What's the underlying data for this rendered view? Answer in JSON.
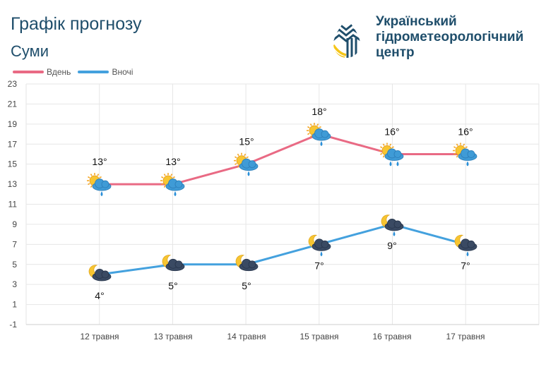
{
  "header": {
    "title": "Графік прогнозу",
    "city": "Суми"
  },
  "logo": {
    "line1": "Український",
    "line2": "гідрометеорологічний",
    "line3": "центр"
  },
  "legend": {
    "day_label": "Вдень",
    "night_label": "Вночі"
  },
  "colors": {
    "day": "#e96a84",
    "night": "#44a1de",
    "grid": "#e6e6e6",
    "text": "#1f4e6b"
  },
  "chart_data": {
    "type": "line",
    "title": "Графік прогнозу",
    "categories": [
      "12 травня",
      "13 травня",
      "14 травня",
      "15 травня",
      "16 травня",
      "17 травня"
    ],
    "y_ticks": [
      23,
      21,
      19,
      17,
      15,
      13,
      11,
      9,
      7,
      5,
      3,
      1,
      -1
    ],
    "ylim": [
      -1,
      23
    ],
    "series": [
      {
        "name": "Вдень",
        "values": [
          13,
          13,
          15,
          18,
          16,
          16
        ],
        "labels": [
          "13°",
          "13°",
          "15°",
          "18°",
          "16°",
          "16°"
        ],
        "icons": [
          "sun-cloud-rain-icon",
          "sun-cloud-rain-icon",
          "sun-cloud-rain-icon",
          "sun-cloud-rain-icon",
          "sun-cloud-heavy-rain-icon",
          "sun-cloud-rain-icon"
        ]
      },
      {
        "name": "Вночі",
        "values": [
          4,
          5,
          5,
          7,
          9,
          7
        ],
        "labels": [
          "4°",
          "5°",
          "5°",
          "7°",
          "9°",
          "7°"
        ],
        "icons": [
          "moon-cloud-icon",
          "moon-cloud-icon",
          "moon-cloud-icon",
          "moon-cloud-rain-icon",
          "moon-cloud-rain-icon",
          "moon-cloud-rain-icon"
        ]
      }
    ]
  }
}
